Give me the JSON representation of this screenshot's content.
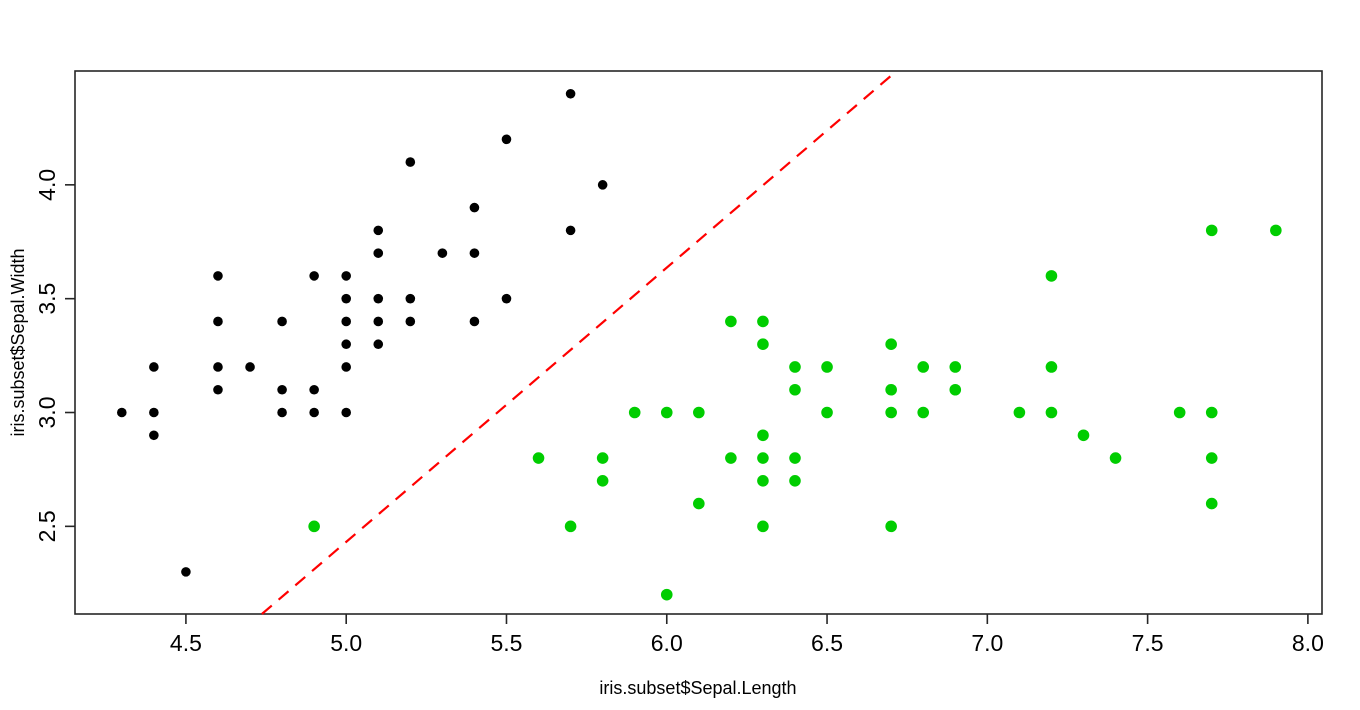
{
  "chart_data": {
    "type": "scatter",
    "title": "",
    "xlabel": "iris.subset$Sepal.Length",
    "ylabel": "iris.subset$Sepal.Width",
    "xlim": [
      4.154,
      8.044
    ],
    "ylim": [
      2.115,
      4.5
    ],
    "x_ticks": [
      4.5,
      5.0,
      5.5,
      6.0,
      6.5,
      7.0,
      7.5,
      8.0
    ],
    "x_tick_labels": [
      "4.5",
      "5.0",
      "5.5",
      "6.0",
      "6.5",
      "7.0",
      "7.5",
      "8.0"
    ],
    "y_ticks": [
      2.5,
      3.0,
      3.5,
      4.0
    ],
    "y_tick_labels": [
      "2.5",
      "3.0",
      "3.5",
      "4.0"
    ],
    "grid": false,
    "legend": "none",
    "background": "#ffffff",
    "box_color": "#262626",
    "series": [
      {
        "name": "black-points",
        "color": "#000000",
        "marker": "filled-circle",
        "radius": 4.8,
        "points": [
          [
            4.3,
            3.0
          ],
          [
            4.4,
            2.9
          ],
          [
            4.4,
            3.0
          ],
          [
            4.4,
            3.2
          ],
          [
            4.5,
            2.3
          ],
          [
            4.6,
            3.1
          ],
          [
            4.6,
            3.2
          ],
          [
            4.6,
            3.4
          ],
          [
            4.6,
            3.6
          ],
          [
            4.7,
            3.2
          ],
          [
            4.8,
            3.0
          ],
          [
            4.8,
            3.1
          ],
          [
            4.8,
            3.4
          ],
          [
            4.9,
            3.0
          ],
          [
            4.9,
            3.1
          ],
          [
            4.9,
            3.6
          ],
          [
            5.0,
            3.0
          ],
          [
            5.0,
            3.2
          ],
          [
            5.0,
            3.3
          ],
          [
            5.0,
            3.4
          ],
          [
            5.0,
            3.5
          ],
          [
            5.0,
            3.6
          ],
          [
            5.1,
            3.3
          ],
          [
            5.1,
            3.4
          ],
          [
            5.1,
            3.5
          ],
          [
            5.1,
            3.7
          ],
          [
            5.1,
            3.8
          ],
          [
            5.2,
            3.4
          ],
          [
            5.2,
            3.5
          ],
          [
            5.2,
            4.1
          ],
          [
            5.3,
            3.7
          ],
          [
            5.4,
            3.4
          ],
          [
            5.4,
            3.7
          ],
          [
            5.4,
            3.9
          ],
          [
            5.5,
            3.5
          ],
          [
            5.5,
            4.2
          ],
          [
            5.7,
            3.8
          ],
          [
            5.7,
            4.4
          ],
          [
            5.8,
            4.0
          ]
        ]
      },
      {
        "name": "green-points",
        "color": "#00CD00",
        "marker": "filled-circle",
        "radius": 5.8,
        "points": [
          [
            4.9,
            2.5
          ],
          [
            5.6,
            2.8
          ],
          [
            5.7,
            2.5
          ],
          [
            5.8,
            2.7
          ],
          [
            5.8,
            2.8
          ],
          [
            5.9,
            3.0
          ],
          [
            6.0,
            2.2
          ],
          [
            6.0,
            3.0
          ],
          [
            6.1,
            2.6
          ],
          [
            6.1,
            3.0
          ],
          [
            6.2,
            2.8
          ],
          [
            6.2,
            3.4
          ],
          [
            6.3,
            2.5
          ],
          [
            6.3,
            2.7
          ],
          [
            6.3,
            2.8
          ],
          [
            6.3,
            2.9
          ],
          [
            6.3,
            3.3
          ],
          [
            6.3,
            3.4
          ],
          [
            6.4,
            2.7
          ],
          [
            6.4,
            2.8
          ],
          [
            6.4,
            3.1
          ],
          [
            6.4,
            3.2
          ],
          [
            6.5,
            3.0
          ],
          [
            6.5,
            3.2
          ],
          [
            6.7,
            2.5
          ],
          [
            6.7,
            3.0
          ],
          [
            6.7,
            3.1
          ],
          [
            6.7,
            3.3
          ],
          [
            6.8,
            3.0
          ],
          [
            6.8,
            3.2
          ],
          [
            6.9,
            3.1
          ],
          [
            6.9,
            3.2
          ],
          [
            7.1,
            3.0
          ],
          [
            7.2,
            3.0
          ],
          [
            7.2,
            3.2
          ],
          [
            7.2,
            3.6
          ],
          [
            7.3,
            2.9
          ],
          [
            7.4,
            2.8
          ],
          [
            7.6,
            3.0
          ],
          [
            7.7,
            2.6
          ],
          [
            7.7,
            2.8
          ],
          [
            7.7,
            3.0
          ],
          [
            7.7,
            3.8
          ],
          [
            7.9,
            3.8
          ]
        ]
      }
    ],
    "boundary_line": {
      "color": "#FF0000",
      "style": "dashed",
      "dash": [
        13,
        9
      ],
      "width": 2.2,
      "x1": 4.737,
      "y1": 2.115,
      "x2": 6.717,
      "y2": 4.5
    }
  }
}
